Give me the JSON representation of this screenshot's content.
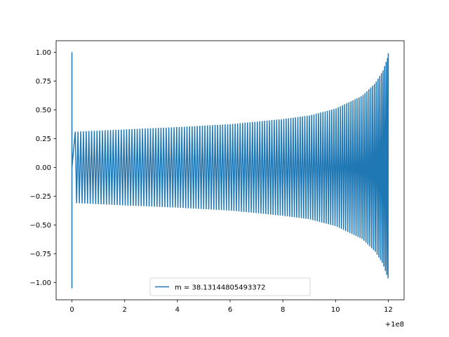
{
  "chart_data": {
    "type": "line",
    "title": "",
    "xlabel": "",
    "ylabel": "",
    "x_offset_label": "+1e8",
    "xlim": [
      -0.6,
      12.6
    ],
    "ylim": [
      -1.15,
      1.1
    ],
    "x_ticks": [
      {
        "value": 0,
        "label": "0"
      },
      {
        "value": 2,
        "label": "2"
      },
      {
        "value": 4,
        "label": "4"
      },
      {
        "value": 6,
        "label": "6"
      },
      {
        "value": 8,
        "label": "8"
      },
      {
        "value": 10,
        "label": "10"
      },
      {
        "value": 12,
        "label": "12"
      }
    ],
    "y_ticks": [
      {
        "value": 1.0,
        "label": "1.00"
      },
      {
        "value": 0.75,
        "label": "0.75"
      },
      {
        "value": 0.5,
        "label": "0.50"
      },
      {
        "value": 0.25,
        "label": "0.25"
      },
      {
        "value": 0.0,
        "label": "0.00"
      },
      {
        "value": -0.25,
        "label": "−0.25"
      },
      {
        "value": -0.5,
        "label": "−0.50"
      },
      {
        "value": -0.75,
        "label": "−0.75"
      },
      {
        "value": -1.0,
        "label": "−1.00"
      }
    ],
    "grid": false,
    "legend_position": "lower-center",
    "series": [
      {
        "name": "m = 38.13144805493372",
        "color": "#1f77b4",
        "cycles": 132,
        "start_spike": {
          "x": 0.0,
          "max": 1.0,
          "min": -1.05
        },
        "envelope": [
          {
            "x": 0.1,
            "amp": 0.31
          },
          {
            "x": 2,
            "amp": 0.33
          },
          {
            "x": 4,
            "amp": 0.35
          },
          {
            "x": 6,
            "amp": 0.375
          },
          {
            "x": 8,
            "amp": 0.42
          },
          {
            "x": 9,
            "amp": 0.45
          },
          {
            "x": 10,
            "amp": 0.51
          },
          {
            "x": 11,
            "amp": 0.62
          },
          {
            "x": 11.5,
            "amp": 0.73
          },
          {
            "x": 11.8,
            "amp": 0.84
          },
          {
            "x": 12.0,
            "amp": 0.97
          }
        ]
      }
    ]
  }
}
